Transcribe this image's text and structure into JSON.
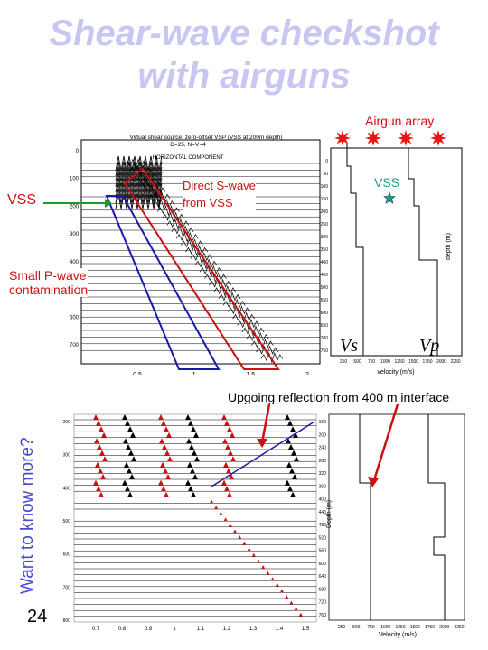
{
  "slide": {
    "title_line1": "Shear-wave checkshot",
    "title_line2": "with airguns",
    "side_text": "Want to know more?",
    "page_number": "24"
  },
  "annotations": {
    "airgun_array": "Airgun array",
    "vss_left": "VSS",
    "direct_s_line1": "Direct S-wave",
    "direct_s_line2": "from VSS",
    "small_p_line1": "Small P-wave",
    "small_p_line2": "contamination",
    "vss_right": "VSS",
    "vs": "Vs",
    "vp": "Vp",
    "upgoing": "Upgoing reflection from 400 m interface"
  },
  "top_panel": {
    "heading1": "Virtual shear source: zero-offset VSP (VSS at 200m depth)",
    "heading2": "D=25, N=V=4",
    "heading3": "HORIZONTAL COMPONENT",
    "y_ticks": [
      "0",
      "100",
      "200",
      "300",
      "400",
      "500",
      "600",
      "700"
    ],
    "x_ticks": [
      "0.5",
      "1",
      "1.5",
      "2"
    ]
  },
  "velocity_top": {
    "depth_label": "depth (m)",
    "velocity_label": "velocity (m/s)",
    "y_ticks": [
      "0",
      "50",
      "100",
      "150",
      "200",
      "250",
      "300",
      "350",
      "400",
      "450",
      "500",
      "550",
      "600",
      "650",
      "700",
      "750"
    ],
    "x_ticks": [
      "250",
      "500",
      "750",
      "1000",
      "1250",
      "1500",
      "1750",
      "2000",
      "2250"
    ]
  },
  "bottom_panel": {
    "y_ticks": [
      "200",
      "300",
      "400",
      "500",
      "600",
      "700",
      "800"
    ],
    "x_ticks": [
      "0.7",
      "0.8",
      "0.9",
      "1",
      "1.1",
      "1.2",
      "1.3",
      "1.4",
      "1.5"
    ]
  },
  "velocity_bottom": {
    "depth_label": "Depth (m)",
    "velocity_label": "Velocity (m/s)",
    "y_ticks": [
      "160",
      "200",
      "240",
      "280",
      "320",
      "360",
      "400",
      "440",
      "480",
      "520",
      "560",
      "600",
      "640",
      "680",
      "720",
      "760"
    ],
    "x_ticks": [
      "250",
      "500",
      "750",
      "1000",
      "1250",
      "1500",
      "1750",
      "2000",
      "2250"
    ]
  },
  "colors": {
    "title": "#c7c7f2",
    "side": "#4a4acf",
    "red": "#cc1111",
    "blue": "#1a1aaa",
    "vss_green": "#1aa08f"
  }
}
